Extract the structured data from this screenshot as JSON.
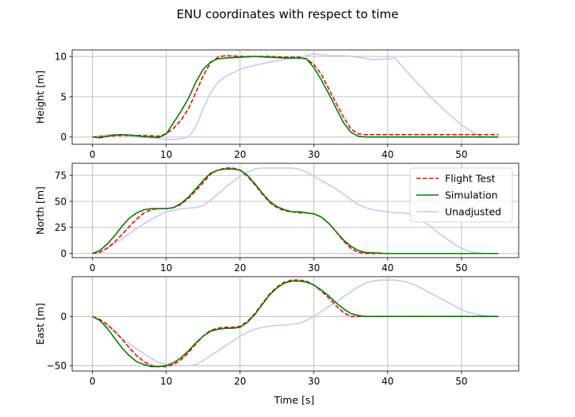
{
  "chart_data": {
    "type": "line",
    "title": "ENU coordinates with respect to time",
    "xlabel": "Time [s]",
    "xlim": [
      -2.75,
      57.75
    ],
    "xticks": [
      0,
      10,
      20,
      30,
      40,
      50
    ],
    "legend": {
      "placement": "upper right of middle panel",
      "entries": [
        "Flight Test",
        "Simulation",
        "Unadjusted"
      ]
    },
    "series_styles": [
      {
        "name": "Flight Test",
        "color": "#ff0000",
        "dash": "dashed"
      },
      {
        "name": "Simulation",
        "color": "#008000",
        "dash": "solid"
      },
      {
        "name": "Unadjusted",
        "color": "#c8c8f8",
        "dash": "solid"
      }
    ],
    "grid": true,
    "subplots": [
      {
        "ylabel": "Height [m]",
        "ylim": [
          -0.9,
          10.8
        ],
        "yticks": [
          0,
          5,
          10
        ],
        "series": [
          {
            "name": "Flight Test",
            "x": [
              0,
              2,
              4,
              6,
              8,
              9,
              10,
              11,
              12,
              13,
              14,
              15,
              16,
              17,
              18,
              20,
              22,
              24,
              26,
              28,
              29,
              30,
              31,
              32,
              33,
              34,
              35,
              36,
              37,
              40,
              45,
              50,
              55
            ],
            "y": [
              0,
              0.1,
              0.2,
              0.2,
              0.15,
              0.1,
              0.4,
              1.1,
              2.1,
              3.5,
              5.5,
              7.6,
              9.2,
              9.9,
              10.1,
              10.0,
              10.0,
              10.0,
              9.9,
              9.9,
              9.7,
              9.0,
              7.8,
              6.0,
              4.2,
              2.5,
              1.0,
              0.4,
              0.3,
              0.3,
              0.3,
              0.3,
              0.3
            ]
          },
          {
            "name": "Simulation",
            "x": [
              0,
              1,
              2,
              3,
              4,
              5,
              6,
              7,
              8,
              9,
              10,
              11,
              12,
              13,
              14,
              15,
              16,
              17,
              18,
              20,
              22,
              24,
              26,
              28,
              29,
              30,
              31,
              32,
              33,
              34,
              35,
              36,
              37,
              40,
              45,
              50,
              55
            ],
            "y": [
              0,
              -0.1,
              0.1,
              0.25,
              0.3,
              0.25,
              0.15,
              0.05,
              0,
              -0.05,
              0.4,
              1.8,
              3.2,
              4.8,
              6.8,
              8.4,
              9.3,
              9.7,
              9.8,
              9.9,
              10.0,
              9.9,
              9.8,
              9.8,
              9.7,
              8.6,
              7.1,
              5.4,
              3.6,
              1.8,
              0.6,
              0.1,
              0,
              0,
              0,
              0,
              0
            ]
          },
          {
            "name": "Unadjusted",
            "x": [
              0,
              2,
              4,
              6,
              8,
              9,
              10,
              11,
              12,
              13,
              14,
              15,
              16,
              17,
              18,
              20,
              22,
              24,
              26,
              28,
              30,
              32,
              34,
              36,
              38,
              40,
              41,
              42,
              44,
              46,
              48,
              50,
              52,
              53,
              55
            ],
            "y": [
              0,
              0.3,
              0.3,
              0,
              -0.1,
              -0.2,
              -0.3,
              -0.3,
              -0.2,
              0,
              1.2,
              3.5,
              5.5,
              6.8,
              7.5,
              8.4,
              8.9,
              9.3,
              9.6,
              9.9,
              10.3,
              10.1,
              10.1,
              9.9,
              9.6,
              9.7,
              9.8,
              8.7,
              6.7,
              4.8,
              3.1,
              1.5,
              0.3,
              0,
              0
            ]
          }
        ]
      },
      {
        "ylabel": "North [m]",
        "ylim": [
          -4,
          86.5
        ],
        "yticks": [
          0,
          25,
          50,
          75
        ],
        "series": [
          {
            "name": "Flight Test",
            "x": [
              0,
              1,
              2,
              3,
              4,
              5,
              6,
              7,
              8,
              9,
              10,
              11,
              12,
              13,
              14,
              15,
              16,
              17,
              18,
              19,
              20,
              21,
              22,
              23,
              24,
              25,
              26,
              27,
              28,
              29,
              30,
              31,
              32,
              33,
              34,
              35,
              36,
              37,
              40,
              45,
              50,
              55
            ],
            "y": [
              0,
              1,
              5,
              11,
              18,
              26,
              33,
              39,
              42,
              43,
              43,
              44,
              47,
              53,
              60,
              68,
              76,
              80,
              82,
              82,
              80,
              74,
              66,
              57,
              49,
              44,
              41,
              40,
              39,
              39,
              38,
              35,
              29,
              21,
              12,
              5,
              1,
              0,
              0,
              0,
              0,
              0
            ]
          },
          {
            "name": "Simulation",
            "x": [
              0,
              1,
              2,
              3,
              4,
              5,
              6,
              7,
              8,
              9,
              10,
              11,
              12,
              13,
              14,
              15,
              16,
              17,
              18,
              19,
              20,
              21,
              22,
              23,
              24,
              25,
              26,
              27,
              28,
              29,
              30,
              31,
              32,
              33,
              34,
              35,
              36,
              37,
              40,
              45,
              50,
              55
            ],
            "y": [
              0,
              3,
              9,
              17,
              26,
              34,
              39,
              42,
              43,
              43,
              43,
              44,
              48,
              54,
              62,
              70,
              77,
              80,
              81,
              81,
              80,
              75,
              67,
              58,
              50,
              45,
              42,
              40,
              40,
              39,
              38,
              35,
              29,
              21,
              13,
              7,
              3,
              1,
              0,
              0,
              0,
              0
            ]
          },
          {
            "name": "Unadjusted",
            "x": [
              0,
              2,
              4,
              6,
              8,
              10,
              12,
              14,
              15,
              16,
              17,
              18,
              19,
              20,
              21,
              22,
              23,
              24,
              25,
              26,
              27,
              28,
              29,
              30,
              31,
              32,
              33,
              34,
              35,
              36,
              37,
              38,
              39,
              40,
              41,
              42,
              43,
              44,
              45,
              46,
              47,
              48,
              49,
              50,
              51,
              52,
              53,
              54,
              55
            ],
            "y": [
              0,
              5,
              14,
              24,
              33,
              40,
              43,
              44,
              46,
              51,
              57,
              63,
              69,
              74,
              78,
              81,
              82,
              82,
              82,
              82,
              82,
              81,
              78,
              74,
              70,
              66,
              62,
              57,
              52,
              47,
              44,
              42,
              41,
              40,
              39,
              39,
              38,
              35,
              30,
              25,
              19,
              14,
              9,
              5,
              2,
              1,
              0,
              0,
              0
            ]
          }
        ]
      },
      {
        "ylabel": "East [m]",
        "ylim": [
          -55.5,
          40.5
        ],
        "yticks": [
          -50,
          0
        ],
        "series": [
          {
            "name": "Flight Test",
            "x": [
              0,
              1,
              2,
              3,
              4,
              5,
              6,
              7,
              8,
              9,
              10,
              11,
              12,
              13,
              14,
              15,
              16,
              17,
              18,
              19,
              20,
              21,
              22,
              23,
              24,
              25,
              26,
              27,
              28,
              29,
              30,
              31,
              32,
              33,
              34,
              35,
              36,
              37,
              40,
              45,
              50,
              55
            ],
            "y": [
              0,
              -3,
              -8,
              -15,
              -23,
              -32,
              -40,
              -46,
              -50,
              -51,
              -51,
              -49,
              -44,
              -37,
              -28,
              -20,
              -14,
              -12,
              -11,
              -11,
              -10,
              -5,
              3,
              13,
              23,
              30,
              35,
              37,
              37,
              36,
              32,
              26,
              19,
              11,
              4,
              0,
              0,
              0,
              0,
              0,
              0,
              0
            ]
          },
          {
            "name": "Simulation",
            "x": [
              0,
              1,
              2,
              3,
              4,
              5,
              6,
              7,
              8,
              9,
              10,
              11,
              12,
              13,
              14,
              15,
              16,
              17,
              18,
              19,
              20,
              21,
              22,
              23,
              24,
              25,
              26,
              27,
              28,
              29,
              30,
              31,
              32,
              33,
              34,
              35,
              36,
              37,
              38,
              40,
              45,
              50,
              55
            ],
            "y": [
              0,
              -4,
              -12,
              -22,
              -32,
              -40,
              -46,
              -49,
              -51,
              -51,
              -50,
              -47,
              -42,
              -35,
              -27,
              -20,
              -15,
              -13,
              -12,
              -12,
              -11,
              -6,
              2,
              12,
              22,
              29,
              34,
              36,
              36,
              35,
              32,
              27,
              21,
              14,
              8,
              3,
              1,
              0,
              0,
              0,
              0,
              0,
              0
            ]
          },
          {
            "name": "Unadjusted",
            "x": [
              0,
              2,
              4,
              6,
              8,
              9,
              10,
              11,
              12,
              13,
              14,
              15,
              16,
              17,
              18,
              19,
              20,
              21,
              22,
              23,
              24,
              25,
              26,
              27,
              28,
              29,
              30,
              31,
              32,
              33,
              34,
              35,
              36,
              37,
              38,
              39,
              40,
              41,
              42,
              43,
              44,
              45,
              46,
              47,
              48,
              49,
              50,
              51,
              52,
              53,
              54,
              55
            ],
            "y": [
              0,
              -9,
              -22,
              -33,
              -43,
              -47,
              -49,
              -50,
              -50,
              -50,
              -49,
              -45,
              -40,
              -35,
              -30,
              -25,
              -20,
              -16,
              -13,
              -11,
              -10,
              -9,
              -9,
              -8,
              -7,
              -4,
              0,
              5,
              10,
              15,
              20,
              25,
              30,
              34,
              36,
              37,
              37,
              37,
              36,
              34,
              31,
              27,
              23,
              19,
              15,
              11,
              7,
              4,
              2,
              1,
              0,
              0
            ]
          }
        ]
      }
    ]
  }
}
